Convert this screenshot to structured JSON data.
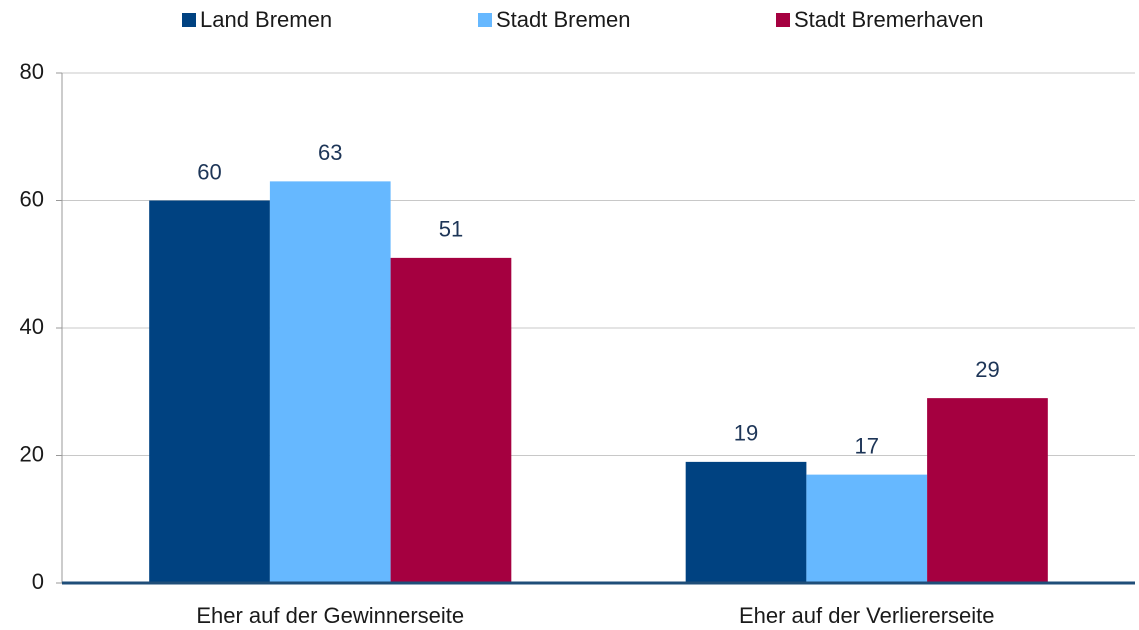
{
  "chart_data": {
    "type": "bar",
    "categories": [
      "Eher auf der Gewinnerseite",
      "Eher auf der Verliererseite"
    ],
    "series": [
      {
        "name": "Land Bremen",
        "color": "#004281",
        "values": [
          60,
          19
        ]
      },
      {
        "name": "Stadt Bremen",
        "color": "#66b8ff",
        "values": [
          63,
          17
        ]
      },
      {
        "name": "Stadt Bremerhaven",
        "color": "#a50040",
        "values": [
          51,
          29
        ]
      }
    ],
    "ylim": [
      0,
      80
    ],
    "yticks": [
      0,
      20,
      40,
      60,
      80
    ],
    "grid": true,
    "legend": "top"
  }
}
